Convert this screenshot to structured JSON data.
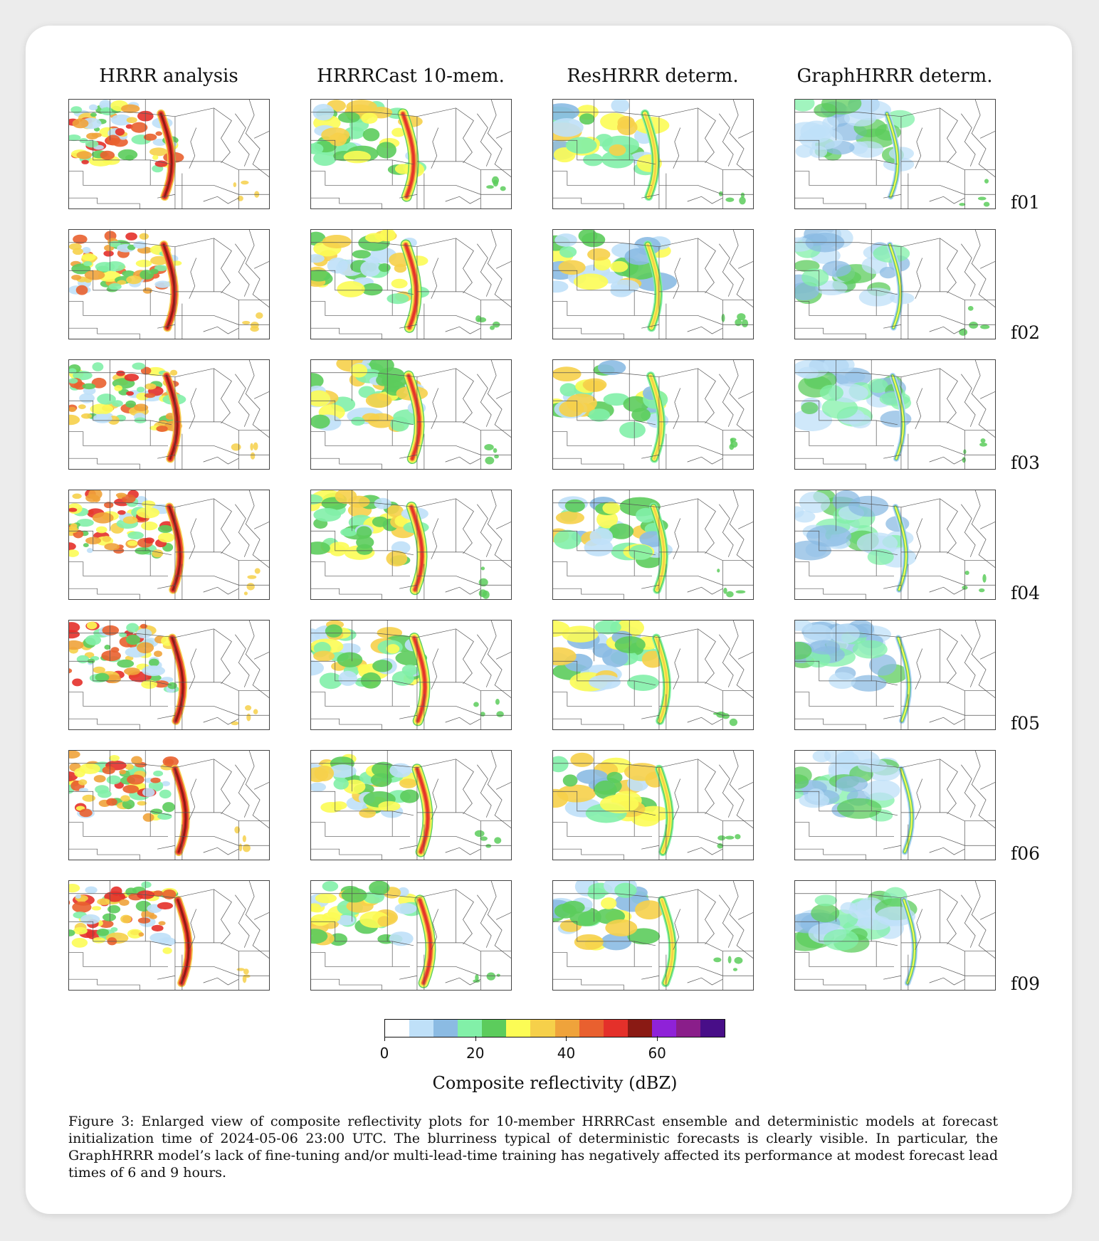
{
  "column_titles": [
    "HRRR analysis",
    "HRRRCast 10-mem.",
    "ResHRRR determ.",
    "GraphHRRR determ."
  ],
  "lead_times": [
    "f01",
    "f02",
    "f03",
    "f04",
    "f05",
    "f06",
    "f09"
  ],
  "colorbar": {
    "colors": [
      "#ffffff",
      "#bfe0f8",
      "#8bbbe3",
      "#82f0a8",
      "#5ccc5c",
      "#fcfc55",
      "#f6d04a",
      "#efa33b",
      "#e9602f",
      "#e4302a",
      "#8a1a14",
      "#8f22d8",
      "#8a1e8a",
      "#480e88"
    ],
    "min": 0,
    "max": 75,
    "ticks": [
      "0",
      "20",
      "40",
      "60"
    ],
    "tick_values": [
      0,
      20,
      40,
      60
    ],
    "label": "Composite reflectivity (dBZ)"
  },
  "caption": "Figure 3: Enlarged view of composite reflectivity plots for 10-member HRRRCast ensemble and deterministic models at forecast initialization time of 2024-05-06 23:00 UTC. The blurriness typical of deterministic forecasts is clearly visible. In particular, the GraphHRRR model’s lack of fine-tuning and/or multi-lead-time training has negatively affected its performance at modest forecast lead times of 6 and 9 hours."
}
